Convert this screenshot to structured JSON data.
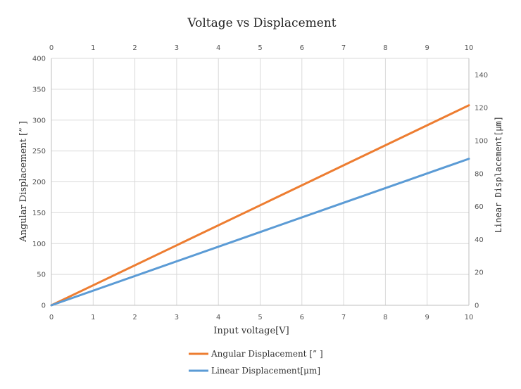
{
  "chart_data": {
    "type": "line",
    "title": "Voltage vs Displacement",
    "xlabel": "Input voltage[V]",
    "ylabel_left": "Angular Displacement [” ]",
    "ylabel_right": "Linear Displacement[μm]",
    "xlim": [
      0,
      10
    ],
    "ylim_left": [
      0,
      400
    ],
    "ylim_right": [
      0,
      150
    ],
    "x_ticks": [
      "0",
      "1",
      "2",
      "3",
      "4",
      "5",
      "6",
      "7",
      "8",
      "9",
      "10"
    ],
    "y_left_ticks": [
      "0",
      "50",
      "100",
      "150",
      "200",
      "250",
      "300",
      "350",
      "400"
    ],
    "y_right_ticks": [
      "0",
      "20",
      "40",
      "60",
      "80",
      "100",
      "120",
      "140"
    ],
    "grid": true,
    "legend_position": "bottom",
    "series": [
      {
        "name": "Angular Displacement [” ]",
        "axis": "left",
        "color": "#ED7D31",
        "x": [
          0,
          10
        ],
        "values": [
          0,
          324
        ]
      },
      {
        "name": "Linear Displacement[μm]",
        "axis": "right",
        "color": "#5B9BD5",
        "x": [
          0,
          10
        ],
        "values": [
          0,
          89
        ]
      }
    ]
  }
}
